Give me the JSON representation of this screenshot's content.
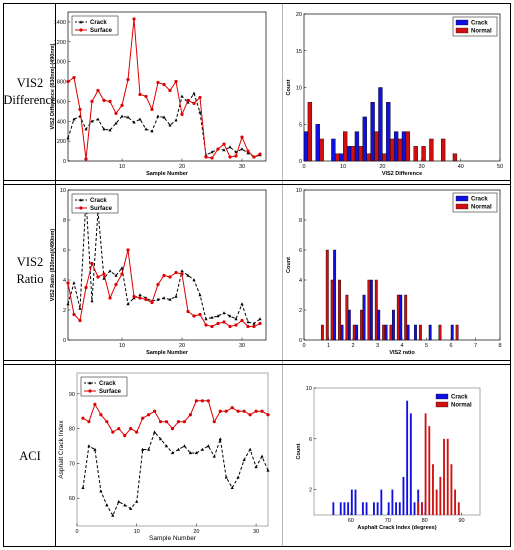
{
  "row_labels": [
    {
      "lines": [
        "VIS2",
        "Difference"
      ]
    },
    {
      "lines": [
        "VIS2",
        "Ratio"
      ]
    },
    {
      "lines": [
        "ACI"
      ]
    }
  ],
  "colors": {
    "crack_line": "#000000",
    "surface_line": "#dd0000",
    "crack_bar": "#1010e0",
    "normal_bar": "#d01010"
  },
  "chart_data": [
    {
      "type": "line",
      "panel": "vis2-difference-sample",
      "title": "",
      "xlabel": "Sample Number",
      "ylabel": "VIS2 Difference (830nm)-(490nm)",
      "xlim": [
        1,
        34
      ],
      "ylim": [
        0,
        1500
      ],
      "xticks": [
        10,
        20,
        30
      ],
      "yticks": [
        0,
        200,
        400,
        600,
        800,
        1000,
        1200,
        1400
      ],
      "legend": "top-left",
      "series": [
        {
          "name": "Crack",
          "style": "dashed-triangle",
          "x": [
            1,
            2,
            3,
            4,
            5,
            6,
            7,
            8,
            9,
            10,
            11,
            12,
            13,
            14,
            15,
            16,
            17,
            18,
            19,
            20,
            21,
            22,
            23,
            24,
            25,
            26,
            27,
            28,
            29,
            30,
            31,
            32,
            33
          ],
          "y": [
            230,
            420,
            450,
            320,
            400,
            420,
            320,
            310,
            380,
            450,
            440,
            390,
            420,
            320,
            300,
            450,
            440,
            360,
            410,
            650,
            590,
            680,
            490,
            60,
            90,
            120,
            110,
            140,
            90,
            120,
            80,
            40,
            60
          ]
        },
        {
          "name": "Surface",
          "style": "solid-circle",
          "x": [
            1,
            2,
            3,
            4,
            5,
            6,
            7,
            8,
            9,
            10,
            11,
            12,
            13,
            14,
            15,
            16,
            17,
            18,
            19,
            20,
            21,
            22,
            23,
            24,
            25,
            26,
            27,
            28,
            29,
            30,
            31,
            32,
            33
          ],
          "y": [
            800,
            840,
            520,
            20,
            600,
            710,
            610,
            600,
            480,
            560,
            820,
            1430,
            670,
            650,
            520,
            790,
            770,
            710,
            800,
            470,
            610,
            580,
            640,
            40,
            30,
            120,
            170,
            40,
            50,
            240,
            100,
            40,
            70
          ]
        }
      ]
    },
    {
      "type": "bar",
      "panel": "vis2-difference-histogram",
      "title": "",
      "xlabel": "VIS2 Difference",
      "ylabel": "Count",
      "xlim": [
        0,
        50
      ],
      "ylim": [
        0,
        20
      ],
      "xticks": [
        0,
        10,
        20,
        30,
        40,
        50
      ],
      "yticks": [
        0,
        5,
        10,
        15,
        20
      ],
      "bin_width": 1,
      "legend": "top-right",
      "series": [
        {
          "name": "Crack",
          "x": [
            0,
            3,
            7,
            9,
            11,
            13,
            15,
            17,
            19,
            21,
            23,
            25
          ],
          "values": [
            4,
            5,
            3,
            1,
            2,
            4,
            6,
            8,
            10,
            8,
            4,
            4
          ]
        },
        {
          "name": "Normal",
          "x": [
            1,
            4,
            8,
            10,
            12,
            14,
            16,
            18,
            20,
            22,
            24,
            26,
            28,
            30,
            32,
            35,
            38
          ],
          "values": [
            8,
            3,
            1,
            4,
            2,
            2,
            1,
            4,
            1,
            3,
            3,
            4,
            2,
            2,
            3,
            3,
            1
          ]
        }
      ]
    },
    {
      "type": "line",
      "panel": "vis2-ratio-sample",
      "title": "",
      "xlabel": "Sample Number",
      "ylabel": "VIS2 Ratio (830nm)/(490nm)",
      "xlim": [
        1,
        34
      ],
      "ylim": [
        0,
        10
      ],
      "xticks": [
        10,
        20,
        30
      ],
      "yticks": [
        0,
        2,
        4,
        6,
        8,
        10
      ],
      "legend": "top-left",
      "series": [
        {
          "name": "Crack",
          "style": "dashed-triangle",
          "x": [
            1,
            2,
            3,
            4,
            5,
            6,
            7,
            8,
            9,
            10,
            11,
            12,
            13,
            14,
            15,
            16,
            17,
            18,
            19,
            20,
            21,
            22,
            23,
            24,
            25,
            26,
            27,
            28,
            29,
            30,
            31,
            32,
            33
          ],
          "y": [
            2.4,
            3.8,
            2.1,
            9.4,
            2.6,
            8.6,
            4.1,
            4.6,
            4.3,
            4.8,
            2.4,
            2.8,
            3.0,
            2.8,
            2.6,
            2.7,
            2.8,
            2.7,
            2.9,
            4.6,
            4.3,
            4.0,
            3.0,
            1.4,
            1.5,
            1.6,
            1.8,
            1.6,
            1.4,
            2.4,
            1.2,
            1.1,
            1.4
          ]
        },
        {
          "name": "Surface",
          "style": "solid-circle",
          "x": [
            1,
            2,
            3,
            4,
            5,
            6,
            7,
            8,
            9,
            10,
            11,
            12,
            13,
            14,
            15,
            16,
            17,
            18,
            19,
            20,
            21,
            22,
            23,
            24,
            25,
            26,
            27,
            28,
            29,
            30,
            31,
            32,
            33
          ],
          "y": [
            3.8,
            1.7,
            1.3,
            3.5,
            5.1,
            4.2,
            4.4,
            2.8,
            3.7,
            4.4,
            6.0,
            2.9,
            2.8,
            2.7,
            2.5,
            3.7,
            4.3,
            4.2,
            4.5,
            4.4,
            1.9,
            1.6,
            1.7,
            1.0,
            0.9,
            1.1,
            1.2,
            0.9,
            1.0,
            1.3,
            0.9,
            0.9,
            1.1
          ]
        }
      ]
    },
    {
      "type": "bar",
      "panel": "vis2-ratio-histogram",
      "title": "",
      "xlabel": "VIS2 ratio",
      "ylabel": "Count",
      "xlim": [
        0,
        8
      ],
      "ylim": [
        0,
        10
      ],
      "xticks": [
        0,
        1,
        2,
        3,
        4,
        5,
        6,
        7,
        8
      ],
      "yticks": [
        0,
        2,
        4,
        6,
        8,
        10
      ],
      "bin_width": 0.1,
      "legend": "top-right",
      "series": [
        {
          "name": "Crack",
          "x": [
            1.2,
            1.5,
            1.8,
            2.1,
            2.4,
            2.7,
            3.0,
            3.3,
            3.6,
            3.9,
            4.2,
            4.5,
            5.1,
            6.0
          ],
          "values": [
            6,
            1,
            2,
            1,
            3,
            4,
            2,
            1,
            2,
            3,
            1,
            1,
            1,
            1
          ]
        },
        {
          "name": "Normal",
          "x": [
            0.7,
            0.9,
            1.1,
            1.4,
            1.7,
            2.0,
            2.3,
            2.6,
            2.9,
            3.2,
            3.5,
            3.8,
            4.1,
            4.7,
            5.5,
            6.2
          ],
          "values": [
            1,
            6,
            4,
            4,
            3,
            1,
            2,
            4,
            4,
            1,
            1,
            3,
            3,
            1,
            1,
            1
          ]
        }
      ]
    },
    {
      "type": "line",
      "panel": "aci-sample",
      "title": "",
      "xlabel": "Sample Number",
      "ylabel": "Asphalt Crack Index",
      "xlim": [
        0,
        32
      ],
      "ylim": [
        52,
        96
      ],
      "xticks": [
        0,
        10,
        20,
        30
      ],
      "yticks": [
        60,
        70,
        80,
        90
      ],
      "legend": "top-left",
      "series": [
        {
          "name": "Crack",
          "style": "dashed-triangle",
          "x": [
            1,
            2,
            3,
            4,
            5,
            6,
            7,
            8,
            9,
            10,
            11,
            12,
            13,
            14,
            15,
            16,
            17,
            18,
            19,
            20,
            21,
            22,
            23,
            24,
            25,
            26,
            27,
            28,
            29,
            30,
            31,
            32
          ],
          "y": [
            63,
            75,
            74,
            62,
            58,
            55,
            59,
            58,
            57,
            59,
            74,
            74,
            79,
            77,
            75,
            73,
            74,
            75,
            73,
            73,
            74,
            75,
            72,
            77,
            66,
            63,
            66,
            71,
            74,
            69,
            72,
            68
          ]
        },
        {
          "name": "Surface",
          "style": "solid-circle",
          "x": [
            1,
            2,
            3,
            4,
            5,
            6,
            7,
            8,
            9,
            10,
            11,
            12,
            13,
            14,
            15,
            16,
            17,
            18,
            19,
            20,
            21,
            22,
            23,
            24,
            25,
            26,
            27,
            28,
            29,
            30,
            31,
            32
          ],
          "y": [
            83,
            82,
            87,
            84,
            82,
            79,
            80,
            78,
            80,
            79,
            83,
            84,
            85,
            82,
            82,
            80,
            82,
            82,
            84,
            88,
            88,
            88,
            82,
            85,
            85,
            86,
            85,
            85,
            84,
            85,
            85,
            84
          ]
        }
      ]
    },
    {
      "type": "bar",
      "panel": "aci-histogram",
      "title": "",
      "xlabel": "Asphalt Crack Index (degrees)",
      "ylabel": "Count",
      "xlim": [
        50,
        95
      ],
      "ylim": [
        0,
        10
      ],
      "xticks": [
        60,
        70,
        80,
        90
      ],
      "yticks": [
        2,
        6,
        10
      ],
      "bin_width": 0.5,
      "legend": "top-right",
      "series": [
        {
          "name": "Crack",
          "x": [
            55,
            57,
            58,
            59,
            60,
            61,
            63,
            64,
            66,
            67,
            68,
            70,
            71,
            72,
            73,
            74,
            75,
            76,
            77,
            78,
            79,
            80
          ],
          "values": [
            1,
            1,
            1,
            1,
            2,
            2,
            1,
            1,
            1,
            1,
            2,
            1,
            2,
            1,
            1,
            3,
            9,
            8,
            1,
            2,
            1,
            1
          ]
        },
        {
          "name": "Normal",
          "x": [
            78,
            79,
            80,
            81,
            82,
            83,
            84,
            85,
            86,
            87,
            88,
            89
          ],
          "values": [
            1,
            1,
            8,
            7,
            4,
            2,
            3,
            6,
            6,
            4,
            2,
            1
          ]
        }
      ]
    }
  ]
}
